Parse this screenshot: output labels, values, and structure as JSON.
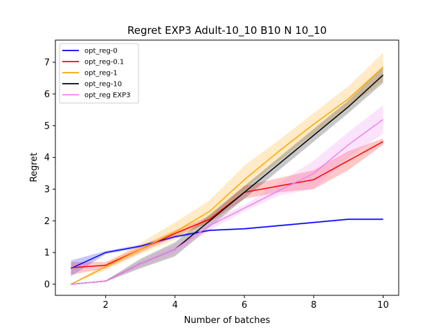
{
  "chart_data": {
    "type": "line",
    "title": "Regret EXP3 Adult-10_10 B10 N 10_10",
    "xlabel": "Number of batches",
    "ylabel": "Regret",
    "xlim": [
      0.55,
      10.45
    ],
    "ylim": [
      -0.35,
      7.7
    ],
    "xticks": [
      2,
      4,
      6,
      8,
      10
    ],
    "yticks": [
      0,
      1,
      2,
      3,
      4,
      5,
      6,
      7
    ],
    "legend_position": "top-left",
    "grid": false,
    "series": [
      {
        "name": "opt_reg-0",
        "color": "#0000ff",
        "x": [
          1,
          2,
          3,
          4,
          5,
          6,
          7,
          8,
          9,
          10
        ],
        "y": [
          0.5,
          1.0,
          1.2,
          1.5,
          1.7,
          1.75,
          1.85,
          1.95,
          2.05,
          2.05
        ],
        "lower": [
          0.25,
          0.95,
          1.15,
          1.45,
          1.67,
          1.72,
          1.82,
          1.92,
          2.02,
          2.02
        ],
        "upper": [
          0.75,
          1.05,
          1.25,
          1.55,
          1.73,
          1.78,
          1.88,
          1.98,
          2.08,
          2.08
        ]
      },
      {
        "name": "opt_reg-0.1",
        "color": "#ff0000",
        "x": [
          1,
          2,
          3,
          4,
          5,
          6,
          7,
          8,
          9,
          10
        ],
        "y": [
          0.52,
          0.6,
          1.1,
          1.6,
          2.05,
          2.9,
          3.1,
          3.3,
          3.9,
          4.5
        ],
        "lower": [
          0.3,
          0.5,
          1.0,
          1.5,
          1.95,
          2.7,
          2.9,
          3.0,
          3.6,
          4.4
        ],
        "upper": [
          0.7,
          0.7,
          1.2,
          1.7,
          2.15,
          3.1,
          3.35,
          3.6,
          4.2,
          4.6
        ]
      },
      {
        "name": "opt_reg-1",
        "color": "#ffa500",
        "x": [
          1,
          2,
          3,
          4,
          5,
          6,
          7,
          8,
          9,
          10
        ],
        "y": [
          0.0,
          0.55,
          1.1,
          1.65,
          2.3,
          3.3,
          4.2,
          5.05,
          5.85,
          6.85
        ],
        "lower": [
          0.0,
          0.45,
          0.95,
          1.4,
          2.0,
          3.0,
          3.9,
          4.75,
          5.6,
          6.4
        ],
        "upper": [
          0.0,
          0.65,
          1.3,
          1.95,
          2.65,
          3.75,
          4.55,
          5.4,
          6.25,
          7.3
        ]
      },
      {
        "name": "opt_reg-10",
        "color": "#000000",
        "x": [
          1,
          2,
          3,
          4,
          5,
          6,
          7,
          8,
          9,
          10
        ],
        "y": [
          0.0,
          0.1,
          0.65,
          1.1,
          2.0,
          2.9,
          3.8,
          4.7,
          5.6,
          6.6
        ],
        "lower": [
          0.0,
          0.08,
          0.5,
          0.88,
          1.8,
          2.7,
          3.6,
          4.5,
          5.4,
          6.35
        ],
        "upper": [
          0.0,
          0.12,
          0.8,
          1.32,
          2.2,
          3.1,
          4.0,
          4.9,
          5.8,
          6.85
        ]
      },
      {
        "name": "opt_reg EXP3",
        "color": "#ee82ee",
        "x": [
          1,
          2,
          3,
          4,
          5,
          6,
          7,
          8,
          9,
          10
        ],
        "y": [
          0.0,
          0.1,
          0.65,
          1.1,
          1.85,
          2.4,
          2.95,
          3.5,
          4.4,
          5.2
        ],
        "lower": [
          0.0,
          0.08,
          0.55,
          0.95,
          1.7,
          2.3,
          2.8,
          3.0,
          4.0,
          4.75
        ],
        "upper": [
          0.0,
          0.12,
          0.75,
          1.25,
          2.0,
          2.5,
          3.2,
          3.9,
          4.8,
          5.65
        ]
      }
    ]
  }
}
